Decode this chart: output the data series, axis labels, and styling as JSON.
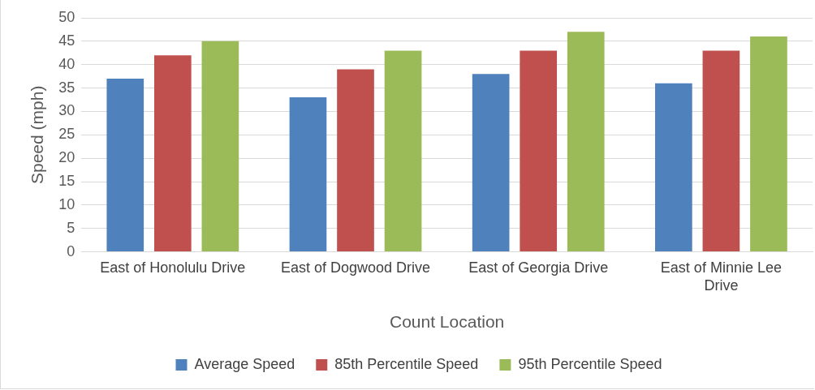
{
  "chart_data": {
    "type": "bar",
    "xlabel": "Count Location",
    "ylabel": "Speed (mph)",
    "categories": [
      "East of Honolulu Drive",
      "East of Dogwood Drive",
      "East of Georgia Drive",
      "East of Minnie Lee Drive"
    ],
    "series": [
      {
        "name": "Average Speed",
        "color": "#4f81bd",
        "values": [
          37,
          33,
          38,
          36
        ]
      },
      {
        "name": "85th Percentile Speed",
        "color": "#c0504d",
        "values": [
          42,
          39,
          43,
          43
        ]
      },
      {
        "name": "95th Percentile Speed",
        "color": "#9bbb59",
        "values": [
          45,
          43,
          47,
          46
        ]
      }
    ],
    "ylim": [
      0,
      50
    ],
    "yticks": [
      0,
      5,
      10,
      15,
      20,
      25,
      30,
      35,
      40,
      45,
      50
    ],
    "grid": "y",
    "legend": "bottom"
  }
}
